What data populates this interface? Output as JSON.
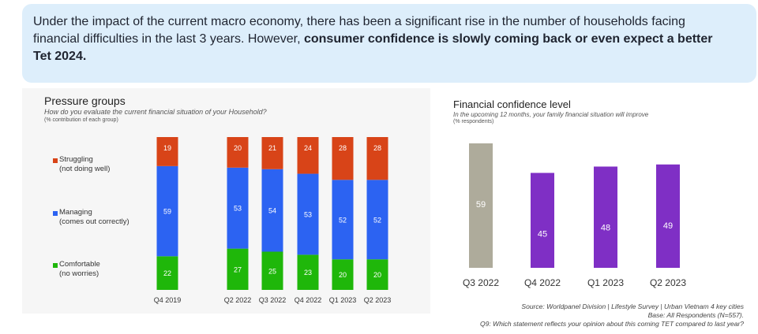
{
  "banner": {
    "text_normal": "Under the impact of the current macro economy, there has been a significant rise in the number of households facing financial difficulties in the last 3 years. However, ",
    "text_bold": "consumer confidence is slowly coming back or even expect a better Tet 2024."
  },
  "chart_data": [
    {
      "type": "bar",
      "stacked": true,
      "title": "Pressure groups",
      "subtitle": "How do you evaluate the current financial situation of your Household?",
      "note": "(% contribution of each group)",
      "categories": [
        "Q4 2019",
        "Q2 2022",
        "Q3 2022",
        "Q4 2022",
        "Q1 2023",
        "Q2 2023"
      ],
      "series": [
        {
          "name": "Comfortable",
          "desc": "(no worries)",
          "color": "#1fb70a",
          "values": [
            22,
            27,
            25,
            23,
            20,
            20
          ]
        },
        {
          "name": "Managing",
          "desc": "(comes out correctly)",
          "color": "#2c63f2",
          "values": [
            59,
            53,
            54,
            53,
            52,
            52
          ]
        },
        {
          "name": "Struggling",
          "desc": "(not doing well)",
          "color": "#d84418",
          "values": [
            19,
            20,
            21,
            24,
            28,
            28
          ]
        }
      ],
      "ylim": [
        0,
        100
      ],
      "legend": "left"
    },
    {
      "type": "bar",
      "title": "Financial confidence level",
      "subtitle": "In the upcoming 12 months, your family financial situation will improve",
      "note": "(% respondents)",
      "categories": [
        "Q3 2022",
        "Q4 2022",
        "Q1 2023",
        "Q2 2023"
      ],
      "values": [
        59,
        45,
        48,
        49
      ],
      "colors": [
        "#aeab9b",
        "#7f2fc5",
        "#7f2fc5",
        "#7f2fc5"
      ],
      "ylim": [
        0,
        60
      ]
    }
  ],
  "source": {
    "line1": "Source: Worldpanel Division | Lifestyle Survey | Urban Vietnam 4 key cities",
    "line2": "Base: All Respondents (N=557).",
    "line3": "Q9: Which statement reflects your opinion about this coming TET compared to last year?"
  }
}
